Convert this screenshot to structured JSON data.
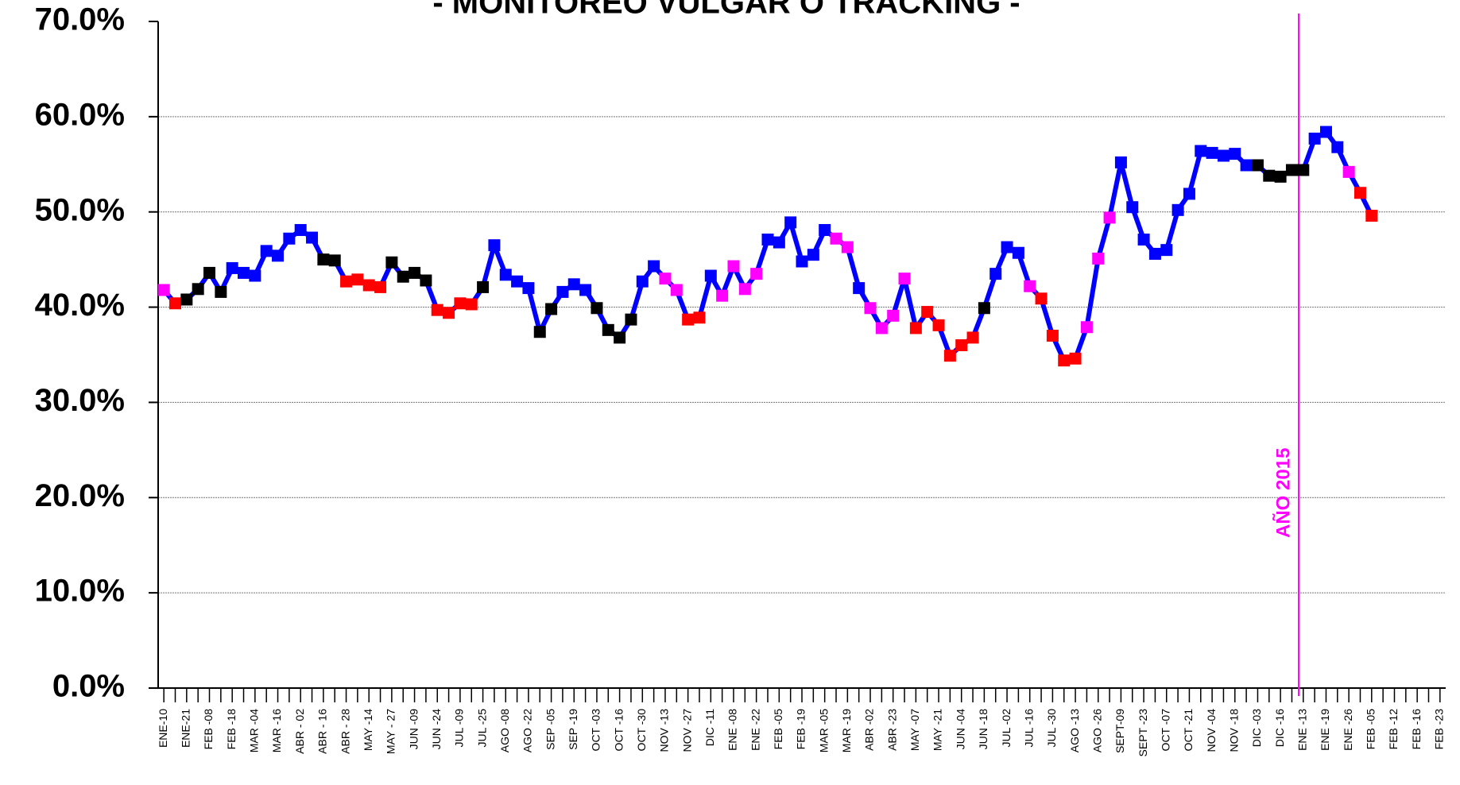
{
  "chart_data": {
    "type": "line",
    "title": "- MONITOREO VULGAR O TRACKING -",
    "annotation": "AÑO 2015",
    "annotation_color": "#ff00ff",
    "categories": [
      "ENE-10",
      null,
      "ENE-21",
      null,
      "FEB -08",
      null,
      "FEB -18",
      null,
      "MAR -04",
      null,
      "MAR -16",
      null,
      "ABR - 02",
      null,
      "ABR - 16",
      null,
      "ABR - 28",
      null,
      "MAY -14",
      null,
      "MAY - 27",
      null,
      "JUN -09",
      null,
      "JUN -24",
      null,
      "JUL -09",
      null,
      "JUL -25",
      null,
      "AGO -08",
      null,
      "AGO -22",
      null,
      "SEP -05",
      null,
      "SEP -19",
      null,
      "OCT -03",
      null,
      "OCT -16",
      null,
      "OCT -30",
      null,
      "NOV -13",
      null,
      "NOV -27",
      null,
      "DIC -11",
      null,
      "ENE -08",
      null,
      "ENE -22",
      null,
      "FEB -05",
      null,
      "FEB -19",
      null,
      "MAR -05",
      null,
      "MAR -19",
      null,
      "ABR -02",
      null,
      "ABR -23",
      null,
      "MAY -07",
      null,
      "MAY -21",
      null,
      "JUN -04",
      null,
      "JUN -18",
      null,
      "JUL -02",
      null,
      "JUL -16",
      null,
      "JUL -30",
      null,
      "AGO -13",
      null,
      "AGO -26",
      null,
      "SEPT-09",
      null,
      "SEPT -23",
      null,
      "OCT -07",
      null,
      "OCT -21",
      null,
      "NOV -04",
      null,
      "NOV -18",
      null,
      "DIC -03",
      null,
      "DIC -16",
      null,
      "ENE -13",
      null,
      "ENE -19",
      null,
      "ENE -26",
      null,
      "FEB -05",
      null,
      "FEB -12",
      null,
      "FEB -16",
      null,
      "FEB -23"
    ],
    "values": [
      41.8,
      40.4,
      40.8,
      41.9,
      43.6,
      41.6,
      44.1,
      43.6,
      43.3,
      45.9,
      45.4,
      47.2,
      48.1,
      47.3,
      45.0,
      44.9,
      42.7,
      42.9,
      42.3,
      42.1,
      44.7,
      43.2,
      43.6,
      42.8,
      39.7,
      39.4,
      40.4,
      40.3,
      42.1,
      46.5,
      43.4,
      42.7,
      42.0,
      37.4,
      39.8,
      41.6,
      42.4,
      41.8,
      39.9,
      37.6,
      36.8,
      38.7,
      42.7,
      44.3,
      43.0,
      41.8,
      38.7,
      38.9,
      43.3,
      41.2,
      44.3,
      41.9,
      43.5,
      47.1,
      46.8,
      48.9,
      44.8,
      45.5,
      48.1,
      47.2,
      46.3,
      42.0,
      39.9,
      37.8,
      39.1,
      43.0,
      37.8,
      39.5,
      38.1,
      34.9,
      36.0,
      36.8,
      39.9,
      43.5,
      46.3,
      45.7,
      42.2,
      40.9,
      37.0,
      34.4,
      34.6,
      37.9,
      45.1,
      49.4,
      55.2,
      50.5,
      47.1,
      45.6,
      46.0,
      50.2,
      51.9,
      56.4,
      56.2,
      55.9,
      56.1,
      54.9,
      54.9,
      53.8,
      53.7,
      54.4,
      54.4,
      57.7,
      58.4,
      56.8,
      54.2,
      52.0,
      49.6,
      null,
      null,
      null,
      null,
      null,
      null
    ],
    "color": "#0000ff",
    "marker_colors": [
      "#ff00ff",
      "#ff0000",
      "#000000",
      "#000000",
      "#000000",
      "#000000",
      "#0000ff",
      "#0000ff",
      "#0000ff",
      "#0000ff",
      "#0000ff",
      "#0000ff",
      "#0000ff",
      "#0000ff",
      "#000000",
      "#000000",
      "#ff0000",
      "#ff0000",
      "#ff0000",
      "#ff0000",
      "#000000",
      "#000000",
      "#000000",
      "#000000",
      "#ff0000",
      "#ff0000",
      "#ff0000",
      "#ff0000",
      "#000000",
      "#0000ff",
      "#0000ff",
      "#0000ff",
      "#0000ff",
      "#000000",
      "#000000",
      "#0000ff",
      "#0000ff",
      "#0000ff",
      "#000000",
      "#000000",
      "#000000",
      "#000000",
      "#0000ff",
      "#0000ff",
      "#ff00ff",
      "#ff00ff",
      "#ff0000",
      "#ff0000",
      "#0000ff",
      "#ff00ff",
      "#ff00ff",
      "#ff00ff",
      "#ff00ff",
      "#0000ff",
      "#0000ff",
      "#0000ff",
      "#0000ff",
      "#0000ff",
      "#0000ff",
      "#ff00ff",
      "#ff00ff",
      "#0000ff",
      "#ff00ff",
      "#ff00ff",
      "#ff00ff",
      "#ff00ff",
      "#ff0000",
      "#ff0000",
      "#ff0000",
      "#ff0000",
      "#ff0000",
      "#ff0000",
      "#000000",
      "#0000ff",
      "#0000ff",
      "#0000ff",
      "#ff00ff",
      "#ff0000",
      "#ff0000",
      "#ff0000",
      "#ff0000",
      "#ff00ff",
      "#ff00ff",
      "#ff00ff",
      "#0000ff",
      "#0000ff",
      "#0000ff",
      "#0000ff",
      "#0000ff",
      "#0000ff",
      "#0000ff",
      "#0000ff",
      "#0000ff",
      "#0000ff",
      "#0000ff",
      "#0000ff",
      "#000000",
      "#000000",
      "#000000",
      "#000000",
      "#000000",
      "#0000ff",
      "#0000ff",
      "#0000ff",
      "#ff00ff",
      "#ff0000",
      "#ff0000",
      null,
      null,
      null,
      null,
      null,
      null
    ],
    "ylim": [
      0,
      70
    ],
    "yticks": [
      {
        "value": 0,
        "label": "0.0%"
      },
      {
        "value": 10,
        "label": "10.0%"
      },
      {
        "value": 20,
        "label": "20.0%"
      },
      {
        "value": 30,
        "label": "30.0%"
      },
      {
        "value": 40,
        "label": "40.0%"
      },
      {
        "value": 50,
        "label": "50.0%"
      },
      {
        "value": 60,
        "label": "60.0%"
      },
      {
        "value": 70,
        "label": "70.0%"
      }
    ],
    "grid": true
  }
}
